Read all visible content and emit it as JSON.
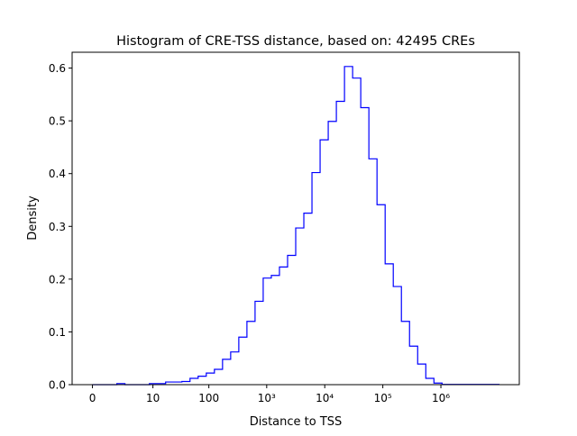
{
  "chart_data": {
    "type": "histogram",
    "title": "Histogram of CRE-TSS distance, based on: 42495 CREs",
    "xlabel": "Distance to TSS",
    "ylabel": "Density",
    "x_scale": "log10(1+x)",
    "bin_range": [
      0,
      10000000
    ],
    "bin_count": 50,
    "ylim": [
      0,
      0.63
    ],
    "grid": false,
    "line_color": "#0000ff",
    "histtype": "step",
    "x_ticks": [
      {
        "value": 0,
        "label": "0"
      },
      {
        "value": 10,
        "label": "10"
      },
      {
        "value": 100,
        "label": "100"
      },
      {
        "value": 1000,
        "label": "10³"
      },
      {
        "value": 10000,
        "label": "10⁴"
      },
      {
        "value": 100000,
        "label": "10⁵"
      },
      {
        "value": 1000000,
        "label": "10⁶"
      }
    ],
    "y_ticks": [
      {
        "value": 0.0,
        "label": "0.0"
      },
      {
        "value": 0.1,
        "label": "0.1"
      },
      {
        "value": 0.2,
        "label": "0.2"
      },
      {
        "value": 0.3,
        "label": "0.3"
      },
      {
        "value": 0.4,
        "label": "0.4"
      },
      {
        "value": 0.5,
        "label": "0.5"
      },
      {
        "value": 0.6,
        "label": "0.6"
      }
    ],
    "densities": [
      0,
      0,
      0,
      0.002,
      0,
      0,
      0,
      0.002,
      0.002,
      0.005,
      0.005,
      0.006,
      0.012,
      0.016,
      0.022,
      0.029,
      0.048,
      0.062,
      0.09,
      0.12,
      0.158,
      0.202,
      0.207,
      0.223,
      0.245,
      0.297,
      0.325,
      0.402,
      0.464,
      0.499,
      0.537,
      0.603,
      0.581,
      0.525,
      0.428,
      0.341,
      0.229,
      0.186,
      0.12,
      0.073,
      0.039,
      0.012,
      0.003,
      0.0005,
      0.0005,
      0.0005,
      0.0005,
      0.0005,
      0.0005,
      0.0005
    ]
  }
}
